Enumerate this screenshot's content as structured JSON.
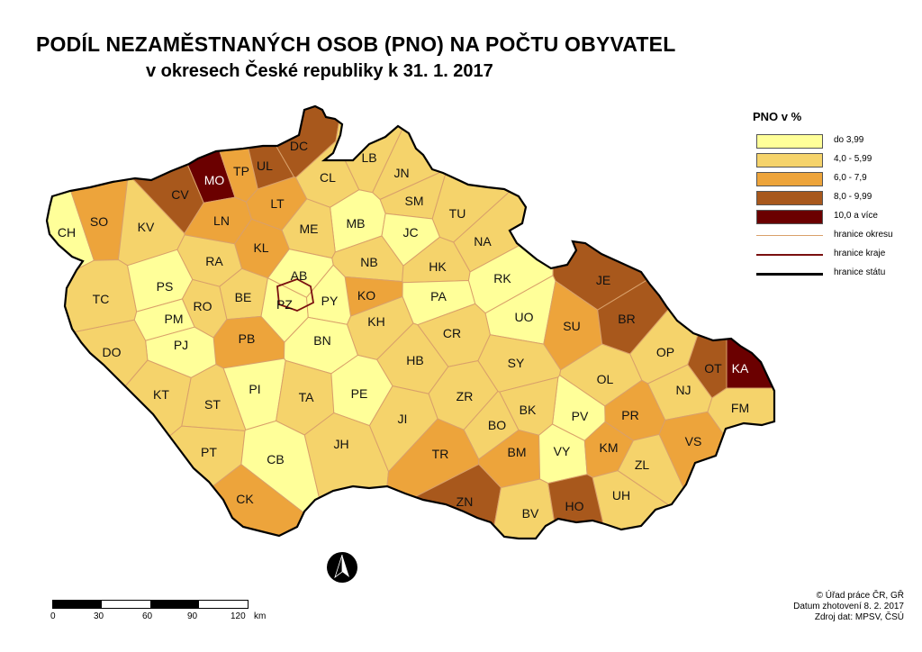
{
  "title": "PODÍL NEZAMĚSTNANÝCH OSOB (PNO) NA POČTU OBYVATEL",
  "subtitle": "v okresech České republiky k 31. 1. 2017",
  "legend": {
    "title": "PNO v %",
    "classes": [
      {
        "label": "do 3,99",
        "color": "#ffff99"
      },
      {
        "label": "4,0 - 5,99",
        "color": "#f5d36b"
      },
      {
        "label": "6,0 - 7,9",
        "color": "#eda43b"
      },
      {
        "label": "8,0 - 9,99",
        "color": "#a8581c"
      },
      {
        "label": "10,0 a více",
        "color": "#6b0000"
      }
    ],
    "lines": [
      {
        "label": "hranice okresu",
        "color": "#d9a06a"
      },
      {
        "label": "hranice kraje",
        "color": "#7a1010"
      },
      {
        "label": "hranice státu",
        "color": "#000000"
      }
    ]
  },
  "districts": [
    {
      "code": "CH",
      "cls": 0
    },
    {
      "code": "SO",
      "cls": 2
    },
    {
      "code": "KV",
      "cls": 1
    },
    {
      "code": "CV",
      "cls": 3
    },
    {
      "code": "MO",
      "cls": 4
    },
    {
      "code": "TP",
      "cls": 2
    },
    {
      "code": "UL",
      "cls": 3
    },
    {
      "code": "DC",
      "cls": 3
    },
    {
      "code": "LN",
      "cls": 2
    },
    {
      "code": "LT",
      "cls": 2
    },
    {
      "code": "CL",
      "cls": 1
    },
    {
      "code": "LB",
      "cls": 1
    },
    {
      "code": "JN",
      "cls": 1
    },
    {
      "code": "SM",
      "cls": 1
    },
    {
      "code": "TU",
      "cls": 1
    },
    {
      "code": "MB",
      "cls": 0
    },
    {
      "code": "ME",
      "cls": 1
    },
    {
      "code": "JC",
      "cls": 0
    },
    {
      "code": "NA",
      "cls": 1
    },
    {
      "code": "KL",
      "cls": 2
    },
    {
      "code": "RA",
      "cls": 1
    },
    {
      "code": "NB",
      "cls": 1
    },
    {
      "code": "HK",
      "cls": 1
    },
    {
      "code": "RK",
      "cls": 0
    },
    {
      "code": "JE",
      "cls": 3
    },
    {
      "code": "TC",
      "cls": 1
    },
    {
      "code": "PS",
      "cls": 0
    },
    {
      "code": "AB",
      "cls": 0
    },
    {
      "code": "KO",
      "cls": 2
    },
    {
      "code": "PA",
      "cls": 0
    },
    {
      "code": "BE",
      "cls": 1
    },
    {
      "code": "PZ",
      "cls": 0
    },
    {
      "code": "PY",
      "cls": 0
    },
    {
      "code": "RO",
      "cls": 1
    },
    {
      "code": "PM",
      "cls": 0
    },
    {
      "code": "UO",
      "cls": 0
    },
    {
      "code": "SU",
      "cls": 2
    },
    {
      "code": "BR",
      "cls": 3
    },
    {
      "code": "KH",
      "cls": 1
    },
    {
      "code": "CR",
      "cls": 1
    },
    {
      "code": "PB",
      "cls": 2
    },
    {
      "code": "PJ",
      "cls": 0
    },
    {
      "code": "DO",
      "cls": 1
    },
    {
      "code": "BN",
      "cls": 0
    },
    {
      "code": "HB",
      "cls": 1
    },
    {
      "code": "SY",
      "cls": 1
    },
    {
      "code": "OP",
      "cls": 1
    },
    {
      "code": "OT",
      "cls": 3
    },
    {
      "code": "KA",
      "cls": 4
    },
    {
      "code": "OL",
      "cls": 1
    },
    {
      "code": "NJ",
      "cls": 1
    },
    {
      "code": "KT",
      "cls": 1
    },
    {
      "code": "PI",
      "cls": 0
    },
    {
      "code": "TA",
      "cls": 1
    },
    {
      "code": "PE",
      "cls": 0
    },
    {
      "code": "ST",
      "cls": 1
    },
    {
      "code": "ZR",
      "cls": 1
    },
    {
      "code": "FM",
      "cls": 1
    },
    {
      "code": "PV",
      "cls": 0
    },
    {
      "code": "PR",
      "cls": 2
    },
    {
      "code": "JI",
      "cls": 1
    },
    {
      "code": "BO",
      "cls": 1
    },
    {
      "code": "BK",
      "cls": 1
    },
    {
      "code": "VS",
      "cls": 2
    },
    {
      "code": "JH",
      "cls": 1
    },
    {
      "code": "PT",
      "cls": 1
    },
    {
      "code": "CB",
      "cls": 0
    },
    {
      "code": "TR",
      "cls": 2
    },
    {
      "code": "BM",
      "cls": 2
    },
    {
      "code": "VY",
      "cls": 0
    },
    {
      "code": "KM",
      "cls": 2
    },
    {
      "code": "ZL",
      "cls": 1
    },
    {
      "code": "UH",
      "cls": 1
    },
    {
      "code": "CK",
      "cls": 2
    },
    {
      "code": "ZN",
      "cls": 3
    },
    {
      "code": "BV",
      "cls": 1
    },
    {
      "code": "HO",
      "cls": 3
    }
  ],
  "scale": {
    "ticks": [
      "0",
      "30",
      "60",
      "90",
      "120"
    ],
    "unit": "km"
  },
  "north_label": "N",
  "credits": [
    "© Úřad práce ČR, GŘ",
    "Datum zhotovení 8. 2. 2017",
    "Zdroj dat: MPSV, ČSÚ"
  ]
}
